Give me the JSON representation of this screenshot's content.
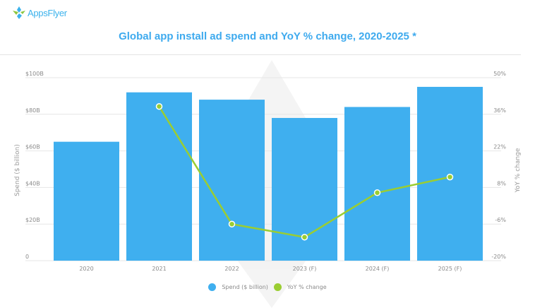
{
  "brand": {
    "name": "AppsFlyer",
    "icon": "appsflyer-logo-icon"
  },
  "colors": {
    "bar": "#3fafef",
    "line": "#9acd32",
    "title": "#3eaaee",
    "grid": "#e6e6e6"
  },
  "chart_data": {
    "type": "bar+line",
    "title": "Global app install ad spend and YoY % change, 2020-2025 *",
    "categories": [
      "2020",
      "2021",
      "2022",
      "2023 (F)",
      "2024 (F)",
      "2025 (F)"
    ],
    "series": [
      {
        "name": "Spend ($ billion)",
        "type": "bar",
        "axis": "left",
        "values": [
          65,
          92,
          88,
          78,
          84,
          95
        ]
      },
      {
        "name": "YoY % change",
        "type": "line",
        "axis": "right",
        "values": [
          null,
          39,
          -6,
          -11,
          6,
          12
        ]
      }
    ],
    "ylabel": "Spend ($ billion)",
    "y2label": "YoY % change",
    "ylim": [
      0,
      100
    ],
    "y2lim": [
      -20,
      50
    ],
    "yticks": [
      "0",
      "$20B",
      "$40B",
      "$60B",
      "$80B",
      "$100B"
    ],
    "y2ticks": [
      "-20%",
      "-6%",
      "8%",
      "22%",
      "36%",
      "50%"
    ],
    "grid": true,
    "legend": "bottom-center"
  }
}
